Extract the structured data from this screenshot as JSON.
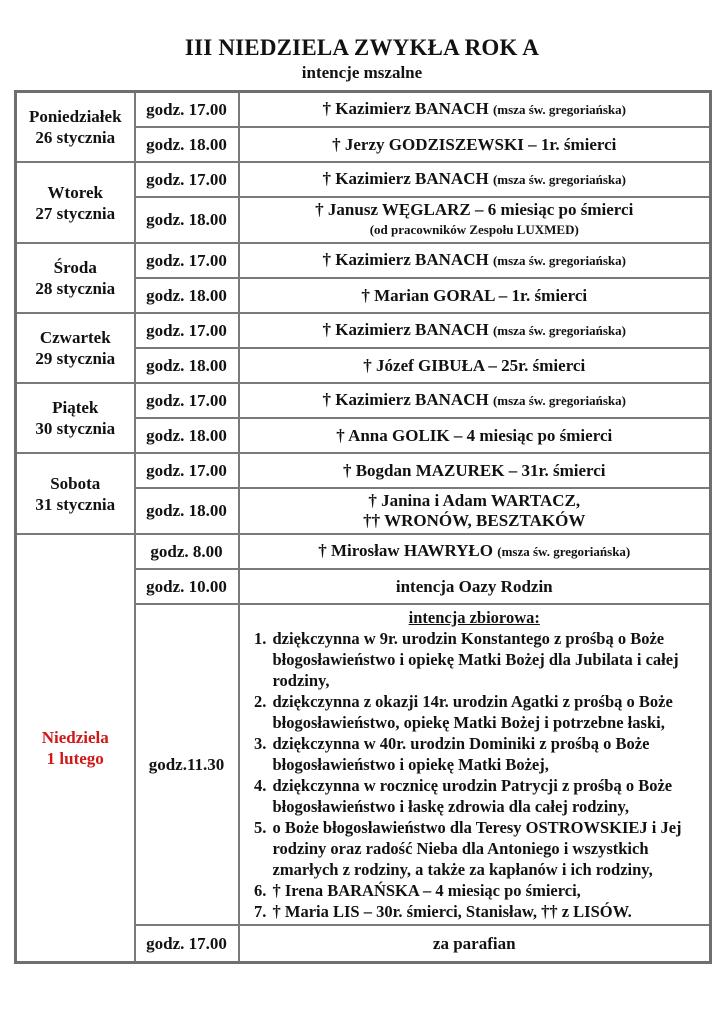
{
  "header": {
    "title": "III NIEDZIELA ZWYKŁA ROK A",
    "subtitle": "intencje mszalne"
  },
  "colors": {
    "sunday_red": "#d01818",
    "table_border_gray": "#7a7a7a",
    "text_black": "#121212"
  },
  "days": [
    {
      "name": "Poniedziałek",
      "date": "26 stycznia",
      "masses": [
        {
          "time": "godz. 17.00",
          "line1": "† Kazimierz BANACH",
          "line1_small": "(msza św. gregoriańska)"
        },
        {
          "time": "godz. 18.00",
          "line1": "† Jerzy GODZISZEWSKI – 1r. śmierci"
        }
      ]
    },
    {
      "name": "Wtorek",
      "date": "27 stycznia",
      "masses": [
        {
          "time": "godz. 17.00",
          "line1": "† Kazimierz BANACH",
          "line1_small": "(msza św. gregoriańska)"
        },
        {
          "time": "godz. 18.00",
          "line1": "† Janusz WĘGLARZ – 6 miesiąc po śmierci",
          "line2_small": "(od pracowników Zespołu LUXMED)"
        }
      ]
    },
    {
      "name": "Środa",
      "date": "28 stycznia",
      "masses": [
        {
          "time": "godz. 17.00",
          "line1": "† Kazimierz BANACH",
          "line1_small": "(msza św. gregoriańska)"
        },
        {
          "time": "godz. 18.00",
          "line1": "† Marian GORAL – 1r. śmierci"
        }
      ]
    },
    {
      "name": "Czwartek",
      "date": "29 stycznia",
      "masses": [
        {
          "time": "godz. 17.00",
          "line1": "† Kazimierz BANACH",
          "line1_small": "(msza św. gregoriańska)"
        },
        {
          "time": "godz. 18.00",
          "line1": "† Józef GIBUŁA – 25r. śmierci"
        }
      ]
    },
    {
      "name": "Piątek",
      "date": "30 stycznia",
      "masses": [
        {
          "time": "godz. 17.00",
          "line1": "† Kazimierz BANACH",
          "line1_small": "(msza św. gregoriańska)"
        },
        {
          "time": "godz. 18.00",
          "line1": "† Anna GOLIK – 4 miesiąc po śmierci"
        }
      ]
    },
    {
      "name": "Sobota",
      "date": "31 stycznia",
      "masses": [
        {
          "time": "godz. 17.00",
          "line1": "† Bogdan MAZUREK – 31r. śmierci"
        },
        {
          "time": "godz. 18.00",
          "line1": "† Janina i Adam WARTACZ,",
          "line2": "†† WRONÓW, BESZTAKÓW"
        }
      ]
    },
    {
      "name": "Niedziela",
      "date": "1 lutego",
      "masses": [
        {
          "time": "godz. 8.00",
          "line1": "† Mirosław HAWRYŁO",
          "line1_small": "(msza św. gregoriańska)"
        },
        {
          "time": "godz. 10.00",
          "line1": "intencja Oazy Rodzin"
        },
        {
          "time": "godz.11.30",
          "collective": true
        },
        {
          "time": "godz. 17.00",
          "line1": "za parafian"
        }
      ]
    }
  ],
  "collective": {
    "heading": "intencja zbiorowa:",
    "items": [
      "dziękczynna w 9r. urodzin Konstantego z prośbą o Boże błogosławieństwo i opiekę Matki Bożej dla Jubilata i całej rodziny,",
      "dziękczynna z okazji 14r. urodzin Agatki z prośbą o Boże błogosławieństwo, opiekę Matki Bożej i potrzebne łaski,",
      "dziękczynna w 40r. urodzin Dominiki z prośbą o Boże błogosławieństwo i opiekę Matki Bożej,",
      "dziękczynna w rocznicę urodzin Patrycji z prośbą o Boże błogosławieństwo i łaskę zdrowia dla całej rodziny,",
      "o Boże błogosławieństwo dla Teresy OSTROWSKIEJ i Jej rodziny oraz radość Nieba dla Antoniego i wszystkich zmarłych z rodziny, a także za kapłanów i ich rodziny,",
      "† Irena BARAŃSKA – 4 miesiąc po śmierci,",
      "† Maria LIS – 30r. śmierci, Stanisław, †† z LISÓW."
    ]
  }
}
